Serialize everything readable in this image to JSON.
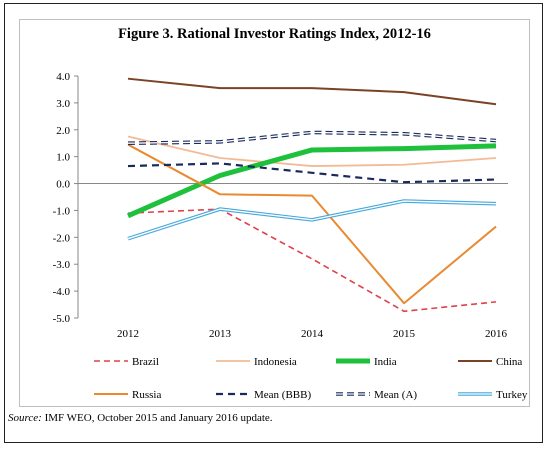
{
  "source_prefix": "Source:",
  "source_text": " IMF WEO, October 2015 and January 2016 update.",
  "chart_data": {
    "type": "line",
    "title": "Figure 3. Rational Investor Ratings Index, 2012-16",
    "x": [
      "2012",
      "2013",
      "2014",
      "2015",
      "2016"
    ],
    "ylim": [
      -5.0,
      4.0
    ],
    "yticks": [
      "4.0",
      "3.0",
      "2.0",
      "1.0",
      "0.0",
      "-1.0",
      "-2.0",
      "-3.0",
      "-4.0",
      "-5.0"
    ],
    "grid": false,
    "legend_position": "bottom",
    "series": [
      {
        "name": "Brazil",
        "values": [
          -1.1,
          -0.95,
          -2.8,
          -4.75,
          -4.4
        ],
        "color": "#e0404a",
        "style": "dashed",
        "width": 1.6
      },
      {
        "name": "Indonesia",
        "values": [
          1.75,
          0.95,
          0.65,
          0.7,
          0.95
        ],
        "color": "#f2bb96",
        "style": "solid",
        "width": 1.8
      },
      {
        "name": "India",
        "values": [
          -1.2,
          0.3,
          1.25,
          1.3,
          1.4
        ],
        "color": "#1ec03c",
        "style": "solid",
        "width": 5
      },
      {
        "name": "China",
        "values": [
          3.9,
          3.55,
          3.55,
          3.4,
          2.95
        ],
        "color": "#7b4325",
        "style": "solid",
        "width": 2
      },
      {
        "name": "Russia",
        "values": [
          1.45,
          -0.4,
          -0.45,
          -4.45,
          -1.6
        ],
        "color": "#e88a32",
        "style": "solid",
        "width": 2
      },
      {
        "name": "Mean (BBB)",
        "values": [
          0.65,
          0.75,
          0.4,
          0.05,
          0.15
        ],
        "color": "#1a2a5c",
        "style": "dashed",
        "width": 2.2
      },
      {
        "name": "Mean (A)",
        "values": [
          1.5,
          1.55,
          1.9,
          1.85,
          1.6
        ],
        "color": "#1a2a5c",
        "style": "double-dashed",
        "width": 1.5
      },
      {
        "name": "Turkey",
        "values": [
          -2.05,
          -0.95,
          -1.35,
          -0.65,
          -0.75
        ],
        "color": "#45a8dc",
        "style": "double",
        "width": 1.5
      }
    ]
  }
}
